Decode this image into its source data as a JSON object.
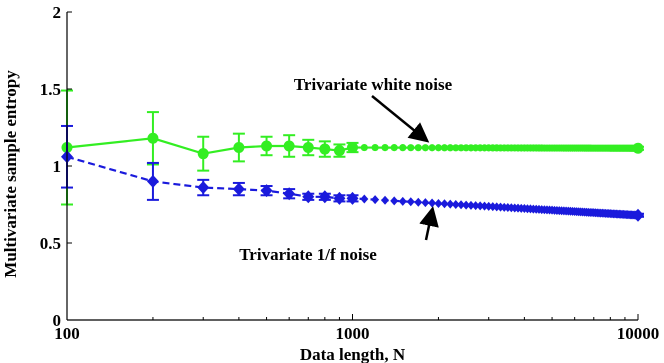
{
  "chart_data": {
    "type": "line",
    "xlabel": "Data length, N",
    "ylabel": "Multivariate sample entropy",
    "xscale": "log",
    "xlim": [
      100,
      10000
    ],
    "ylim": [
      0,
      2
    ],
    "x_ticks": [
      100,
      1000,
      10000
    ],
    "x_tick_labels": [
      "100",
      "1000",
      "10000"
    ],
    "y_ticks": [
      0,
      0.5,
      1,
      1.5,
      2
    ],
    "y_tick_labels": [
      "0",
      "0.5",
      "1",
      "1.5",
      "2"
    ],
    "grid": false,
    "series": [
      {
        "color": "#33ee22",
        "line_style": "solid",
        "marker": "circle",
        "x": [
          100,
          200,
          300,
          400,
          500,
          600,
          700,
          800,
          900,
          1000,
          10000
        ],
        "y": [
          1.12,
          1.18,
          1.08,
          1.12,
          1.13,
          1.13,
          1.12,
          1.11,
          1.1,
          1.12,
          1.115
        ],
        "err": [
          0.37,
          0.17,
          0.11,
          0.09,
          0.06,
          0.07,
          0.05,
          0.05,
          0.04,
          0.03,
          0.01
        ]
      },
      {
        "color": "#1a1adc",
        "line_style": "dashed",
        "marker": "diamond",
        "x": [
          100,
          200,
          300,
          400,
          500,
          600,
          700,
          800,
          900,
          1000,
          10000
        ],
        "y": [
          1.06,
          0.9,
          0.86,
          0.85,
          0.84,
          0.82,
          0.8,
          0.8,
          0.79,
          0.79,
          0.68
        ],
        "err": [
          0.2,
          0.12,
          0.05,
          0.04,
          0.03,
          0.03,
          0.02,
          0.02,
          0.02,
          0.02,
          0.01
        ]
      }
    ],
    "annotations": [
      {
        "text": "Trivariate white noise",
        "target": [
          1800,
          1.12
        ]
      },
      {
        "text": "Trivariate 1/f noise",
        "target": [
          1900,
          0.76
        ]
      }
    ]
  }
}
